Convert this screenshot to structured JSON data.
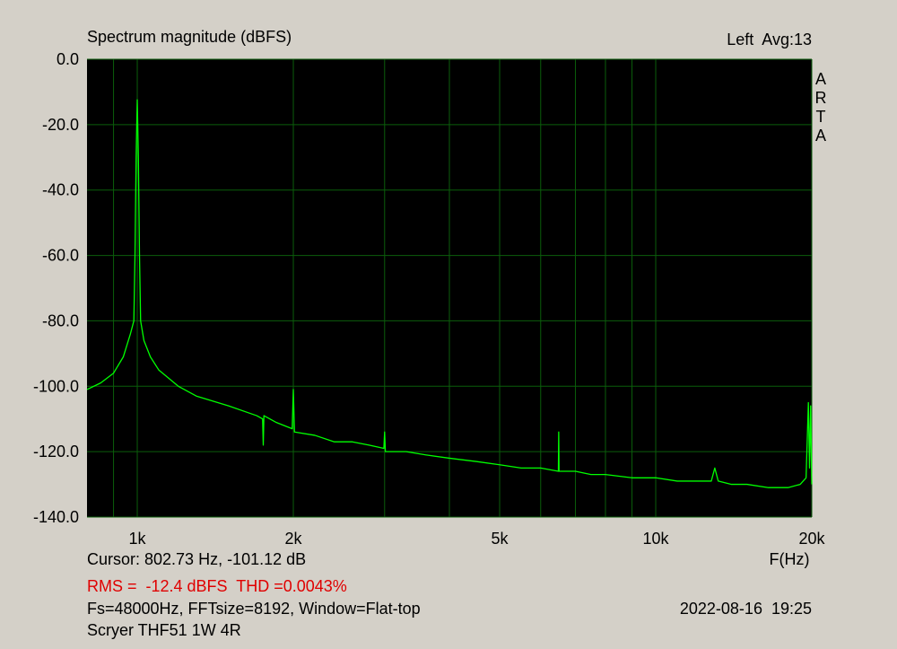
{
  "chart_data": {
    "type": "line",
    "title": "Spectrum magnitude (dBFS)",
    "channel_info": "Left  Avg:13",
    "watermark": "ARTA",
    "x_label": "F(Hz)",
    "cursor": "Cursor: 802.73 Hz, -101.12 dB",
    "measurement": "RMS =  -12.4 dBFS  THD =0.0043%",
    "settings": "Fs=48000Hz, FFTsize=8192, Window=Flat-top",
    "timestamp": "2022-08-16  19:25",
    "device": "Scryer THF51 1W 4R",
    "xscale": "log",
    "xlim": [
      800,
      20000
    ],
    "ylim": [
      -140,
      0
    ],
    "xticks": [
      {
        "value": 1000,
        "label": "1k"
      },
      {
        "value": 2000,
        "label": "2k"
      },
      {
        "value": 5000,
        "label": "5k"
      },
      {
        "value": 10000,
        "label": "10k"
      },
      {
        "value": 20000,
        "label": "20k"
      }
    ],
    "minor_xticks": [
      900,
      3000,
      4000,
      6000,
      7000,
      8000,
      9000
    ],
    "yticks": [
      {
        "value": 0,
        "label": "0.0"
      },
      {
        "value": -20,
        "label": "-20.0"
      },
      {
        "value": -40,
        "label": "-40.0"
      },
      {
        "value": -60,
        "label": "-60.0"
      },
      {
        "value": -80,
        "label": "-80.0"
      },
      {
        "value": -100,
        "label": "-100.0"
      },
      {
        "value": -120,
        "label": "-120.0"
      },
      {
        "value": -140,
        "label": "-140.0"
      }
    ],
    "grid": true,
    "background": "#000000",
    "grid_color": "#0b5e0b",
    "x": [
      800,
      850,
      900,
      940,
      970,
      985,
      990,
      995,
      1000,
      1005,
      1010,
      1015,
      1030,
      1060,
      1100,
      1200,
      1300,
      1500,
      1700,
      1745,
      1750,
      1755,
      1850,
      1990,
      2000,
      2010,
      2200,
      2400,
      2600,
      2800,
      2990,
      3000,
      3010,
      3300,
      3600,
      4000,
      4500,
      5000,
      5500,
      6000,
      6490,
      6500,
      6510,
      7000,
      7500,
      8000,
      9000,
      10000,
      11000,
      12000,
      12800,
      13000,
      13200,
      14000,
      15000,
      16500,
      18000,
      19000,
      19500,
      19700,
      19800,
      19900,
      20000
    ],
    "series": [
      {
        "name": "Left",
        "color": "#00ff00",
        "values": [
          -101,
          -99,
          -96,
          -91,
          -84,
          -80,
          -60,
          -30,
          -12.4,
          -30,
          -60,
          -80,
          -86,
          -91,
          -95,
          -100,
          -103,
          -106,
          -109,
          -110,
          -118,
          -109,
          -111,
          -113,
          -101,
          -114,
          -115,
          -117,
          -117,
          -118,
          -119,
          -114,
          -120,
          -120,
          -121,
          -122,
          -123,
          -124,
          -125,
          -125,
          -126,
          -114,
          -126,
          -126,
          -127,
          -127,
          -128,
          -128,
          -129,
          -129,
          -129,
          -125,
          -129,
          -130,
          -130,
          -131,
          -131,
          -130,
          -128,
          -105,
          -125,
          -106,
          -130
        ]
      }
    ]
  }
}
